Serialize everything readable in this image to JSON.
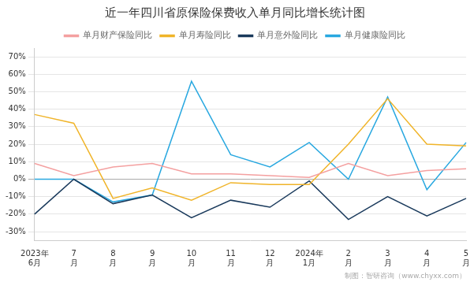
{
  "chart_data": {
    "type": "line",
    "title": "近一年四川省原保险保费收入单月同比增长统计图",
    "categories": [
      [
        "2023年",
        "6月"
      ],
      [
        "7",
        "月"
      ],
      [
        "8",
        "月"
      ],
      [
        "9",
        "月"
      ],
      [
        "10",
        "月"
      ],
      [
        "11",
        "月"
      ],
      [
        "12",
        "月"
      ],
      [
        "2024年",
        "1月"
      ],
      [
        "2",
        "月"
      ],
      [
        "3",
        "月"
      ],
      [
        "4",
        "月"
      ],
      [
        "5",
        "月"
      ]
    ],
    "series": [
      {
        "name": "单月财产保险同比",
        "color": "#F4A0A0",
        "values": [
          9,
          2,
          7,
          9,
          3,
          3,
          2,
          1,
          9,
          2,
          5,
          6
        ]
      },
      {
        "name": "单月寿险同比",
        "color": "#F0B429",
        "values": [
          37,
          32,
          -11,
          -5,
          -12,
          -2,
          -3,
          -3,
          20,
          46,
          20,
          19
        ]
      },
      {
        "name": "单月意外险同比",
        "color": "#1A3A5C",
        "values": [
          -20,
          0,
          -14,
          -9,
          -22,
          -12,
          -16,
          -1,
          -23,
          -10,
          -21,
          -11
        ]
      },
      {
        "name": "单月健康险同比",
        "color": "#29A8E0",
        "values": [
          0,
          0,
          -13,
          -9,
          56,
          14,
          7,
          21,
          0,
          47,
          -6,
          21
        ]
      }
    ],
    "ylim": [
      -35,
      75
    ],
    "yticks": [
      {
        "value": -30,
        "label": "-30%"
      },
      {
        "value": -20,
        "label": "-20%"
      },
      {
        "value": -10,
        "label": "-10%"
      },
      {
        "value": 0,
        "label": "0%"
      },
      {
        "value": 10,
        "label": "10%"
      },
      {
        "value": 20,
        "label": "20%"
      },
      {
        "value": 30,
        "label": "30%"
      },
      {
        "value": 40,
        "label": "40%"
      },
      {
        "value": 50,
        "label": "50%"
      },
      {
        "value": 60,
        "label": "60%"
      },
      {
        "value": 70,
        "label": "70%"
      }
    ],
    "grid": true,
    "legend": "top",
    "marker": "none",
    "annotations": [
      "制图：智研咨询（www.chyxx.com）"
    ]
  }
}
